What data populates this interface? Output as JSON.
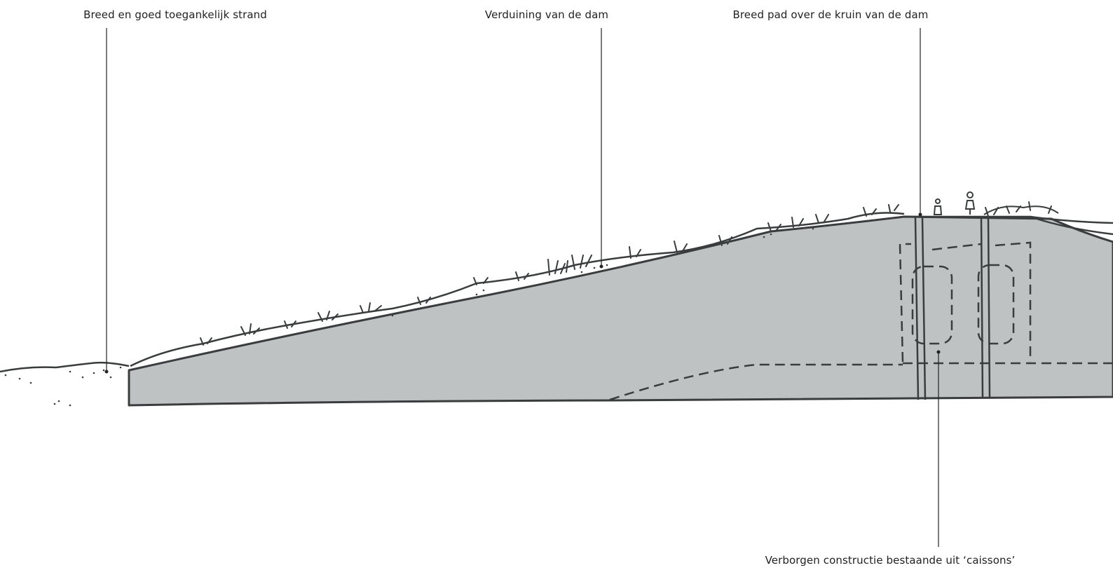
{
  "labels": {
    "beach": "Breed en goed toegankelijk strand",
    "dune": "Verduining van de dam",
    "path": "Breed pad over de kruin van de dam",
    "caissons": "Verborgen constructie bestaande uit ‘caissons’"
  },
  "colors": {
    "dam_fill": "#bfc2c2",
    "outline": "#3a3d3d",
    "leader": "#222222",
    "background": "#ffffff"
  }
}
